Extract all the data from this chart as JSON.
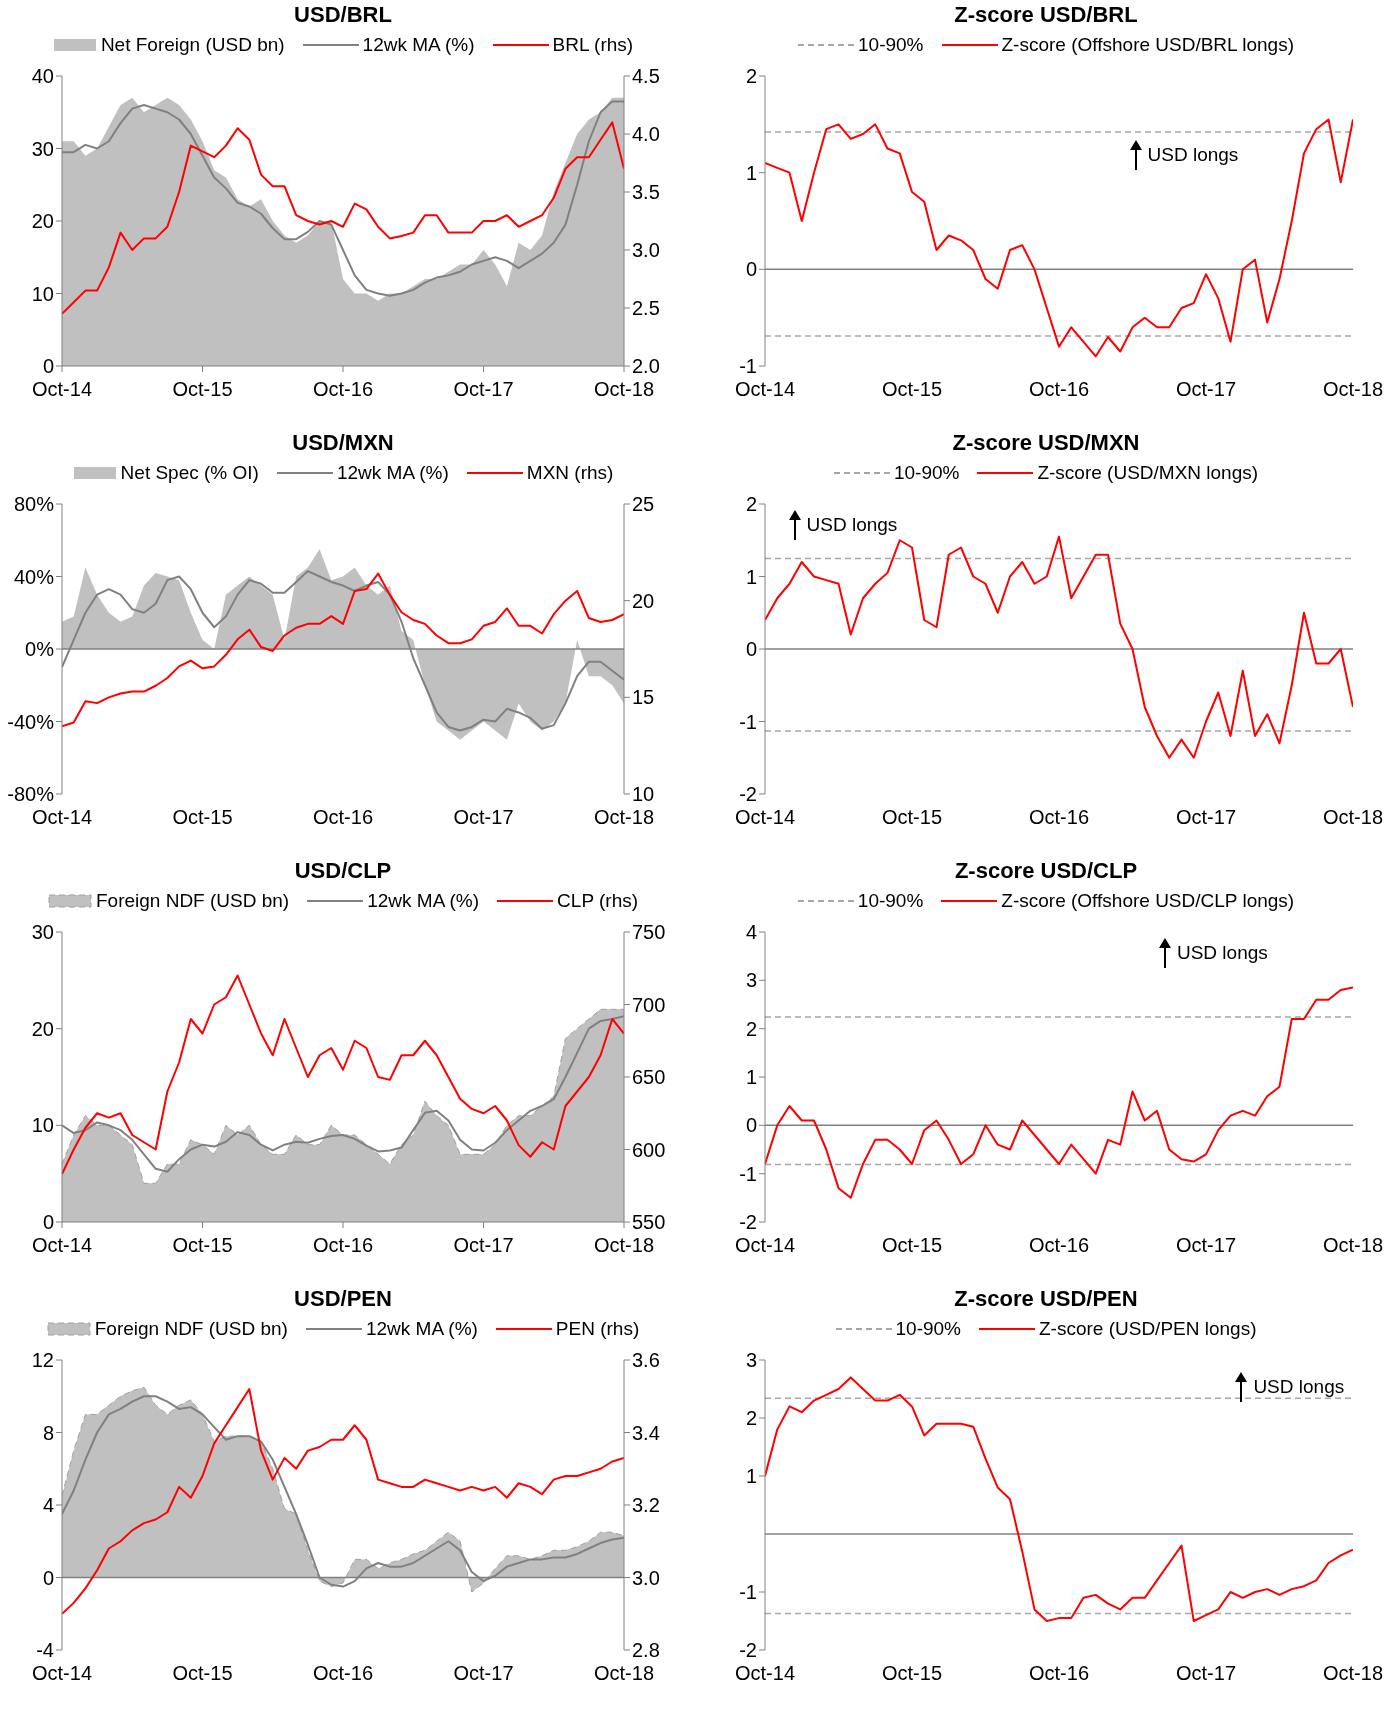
{
  "chart_data": [
    {
      "type": "line",
      "title": "USD/BRL",
      "legend": "top",
      "x": [
        "2014-10",
        "2014-11",
        "2014-12",
        "2015-01",
        "2015-02",
        "2015-03",
        "2015-04",
        "2015-05",
        "2015-06",
        "2015-07",
        "2015-08",
        "2015-09",
        "2015-10",
        "2015-11",
        "2015-12",
        "2016-01",
        "2016-02",
        "2016-03",
        "2016-04",
        "2016-05",
        "2016-06",
        "2016-07",
        "2016-08",
        "2016-09",
        "2016-10",
        "2016-11",
        "2016-12",
        "2017-01",
        "2017-02",
        "2017-03",
        "2017-04",
        "2017-05",
        "2017-06",
        "2017-07",
        "2017-08",
        "2017-09",
        "2017-10",
        "2017-11",
        "2017-12",
        "2018-01",
        "2018-02",
        "2018-03",
        "2018-04",
        "2018-05",
        "2018-06",
        "2018-07",
        "2018-08",
        "2018-09",
        "2018-10"
      ],
      "xlim": [
        "2014-10",
        "2018-10"
      ],
      "xticks": [
        {
          "value": "2014-10",
          "label": "Oct-14"
        },
        {
          "value": "2015-10",
          "label": "Oct-15"
        },
        {
          "value": "2016-10",
          "label": "Oct-16"
        },
        {
          "value": "2017-10",
          "label": "Oct-17"
        },
        {
          "value": "2018-10",
          "label": "Oct-18"
        }
      ],
      "ylim": [
        0,
        40
      ],
      "yticks": [
        0,
        10,
        20,
        30,
        40
      ],
      "y2lim": [
        2,
        4.5
      ],
      "y2ticks": [
        {
          "value": 2,
          "label": "2.0"
        },
        {
          "value": 2.5,
          "label": "2.5"
        },
        {
          "value": 3,
          "label": "3.0"
        },
        {
          "value": 3.5,
          "label": "3.5"
        },
        {
          "value": 4,
          "label": "4.0"
        },
        {
          "value": 4.5,
          "label": "4.5"
        }
      ],
      "series": [
        {
          "type": "area",
          "name": "Net Foreign (USD bn)",
          "color": "#c0c0c0",
          "values": [
            31,
            31,
            29,
            30,
            33,
            36,
            37,
            35,
            36,
            37,
            36,
            34,
            31,
            27,
            26,
            23,
            22,
            23,
            20,
            18,
            17,
            18,
            20,
            20,
            12,
            10,
            10,
            9,
            10,
            10,
            11,
            12,
            12,
            13,
            14,
            14,
            16,
            14,
            11,
            17,
            16,
            18,
            24,
            28,
            32,
            34,
            35,
            37,
            37
          ]
        },
        {
          "type": "line",
          "name": "12wk MA (%)",
          "color": "#808080",
          "values": [
            29.5,
            29.5,
            30.5,
            30,
            31,
            33.5,
            35.5,
            36,
            35.5,
            35,
            34,
            32,
            29,
            26,
            24.5,
            22.5,
            22,
            21,
            19,
            17.5,
            17.5,
            18.5,
            20,
            19.5,
            16,
            12.5,
            10.5,
            10,
            9.7,
            10,
            10.5,
            11.5,
            12.2,
            12.5,
            13,
            14,
            14.5,
            15,
            14.5,
            13.5,
            14.5,
            15.5,
            17,
            19.5,
            25,
            31,
            35,
            36.5,
            36.5
          ]
        },
        {
          "type": "line",
          "name": "BRL (rhs)",
          "color": "#ff0000",
          "axis": "y2",
          "values": [
            2.45,
            2.55,
            2.65,
            2.65,
            2.85,
            3.15,
            3.0,
            3.1,
            3.1,
            3.2,
            3.5,
            3.9,
            3.85,
            3.8,
            3.9,
            4.05,
            3.95,
            3.65,
            3.55,
            3.55,
            3.3,
            3.25,
            3.22,
            3.25,
            3.2,
            3.4,
            3.35,
            3.2,
            3.1,
            3.12,
            3.15,
            3.3,
            3.3,
            3.15,
            3.15,
            3.15,
            3.25,
            3.25,
            3.3,
            3.2,
            3.25,
            3.3,
            3.45,
            3.7,
            3.8,
            3.8,
            3.95,
            4.1,
            3.7
          ]
        }
      ]
    },
    {
      "type": "line",
      "title": "Z-score USD/BRL",
      "legend": "top",
      "annotations": [
        "USD longs"
      ],
      "x": [
        "2014-10",
        "2014-11",
        "2014-12",
        "2015-01",
        "2015-02",
        "2015-03",
        "2015-04",
        "2015-05",
        "2015-06",
        "2015-07",
        "2015-08",
        "2015-09",
        "2015-10",
        "2015-11",
        "2015-12",
        "2016-01",
        "2016-02",
        "2016-03",
        "2016-04",
        "2016-05",
        "2016-06",
        "2016-07",
        "2016-08",
        "2016-09",
        "2016-10",
        "2016-11",
        "2016-12",
        "2017-01",
        "2017-02",
        "2017-03",
        "2017-04",
        "2017-05",
        "2017-06",
        "2017-07",
        "2017-08",
        "2017-09",
        "2017-10",
        "2017-11",
        "2017-12",
        "2018-01",
        "2018-02",
        "2018-03",
        "2018-04",
        "2018-05",
        "2018-06",
        "2018-07",
        "2018-08",
        "2018-09",
        "2018-10"
      ],
      "xlim": [
        "2014-10",
        "2018-10"
      ],
      "xticks": [
        {
          "value": "2014-10",
          "label": "Oct-14"
        },
        {
          "value": "2015-10",
          "label": "Oct-15"
        },
        {
          "value": "2016-10",
          "label": "Oct-16"
        },
        {
          "value": "2017-10",
          "label": "Oct-17"
        },
        {
          "value": "2018-10",
          "label": "Oct-18"
        }
      ],
      "ylim": [
        -1,
        2
      ],
      "yticks": [
        -1,
        0,
        1,
        2
      ],
      "ref_lines": [
        {
          "axis": "y",
          "value": 0,
          "color": "#808080"
        }
      ],
      "series": [
        {
          "name": "10-90%",
          "color": "#a6a6a6",
          "line_style": "dashed",
          "x": [
            "2014-10",
            "2018-10"
          ],
          "values": [
            1.42,
            1.42
          ]
        },
        {
          "color": "#a6a6a6",
          "line_style": "dashed",
          "x": [
            "2014-10",
            "2018-10"
          ],
          "values": [
            -0.69,
            -0.69
          ]
        },
        {
          "name": "Z-score (Offshore USD/BRL longs)",
          "color": "#ff0000",
          "values": [
            1.1,
            1.05,
            1.0,
            0.5,
            1.0,
            1.45,
            1.5,
            1.35,
            1.4,
            1.5,
            1.25,
            1.2,
            0.8,
            0.7,
            0.2,
            0.35,
            0.3,
            0.2,
            -0.1,
            -0.2,
            0.2,
            0.25,
            0.0,
            -0.4,
            -0.8,
            -0.6,
            -0.75,
            -0.9,
            -0.7,
            -0.85,
            -0.6,
            -0.5,
            -0.6,
            -0.6,
            -0.4,
            -0.35,
            -0.05,
            -0.3,
            -0.75,
            0.0,
            0.1,
            -0.55,
            -0.1,
            0.5,
            1.2,
            1.45,
            1.55,
            0.9,
            1.55
          ]
        }
      ]
    },
    {
      "type": "line",
      "title": "USD/MXN",
      "legend": "top",
      "x": [
        "2014-10",
        "2014-11",
        "2014-12",
        "2015-01",
        "2015-02",
        "2015-03",
        "2015-04",
        "2015-05",
        "2015-06",
        "2015-07",
        "2015-08",
        "2015-09",
        "2015-10",
        "2015-11",
        "2015-12",
        "2016-01",
        "2016-02",
        "2016-03",
        "2016-04",
        "2016-05",
        "2016-06",
        "2016-07",
        "2016-08",
        "2016-09",
        "2016-10",
        "2016-11",
        "2016-12",
        "2017-01",
        "2017-02",
        "2017-03",
        "2017-04",
        "2017-05",
        "2017-06",
        "2017-07",
        "2017-08",
        "2017-09",
        "2017-10",
        "2017-11",
        "2017-12",
        "2018-01",
        "2018-02",
        "2018-03",
        "2018-04",
        "2018-05",
        "2018-06",
        "2018-07",
        "2018-08",
        "2018-09",
        "2018-10"
      ],
      "xlim": [
        "2014-10",
        "2018-10"
      ],
      "xticks": [
        {
          "value": "2014-10",
          "label": "Oct-14"
        },
        {
          "value": "2015-10",
          "label": "Oct-15"
        },
        {
          "value": "2016-10",
          "label": "Oct-16"
        },
        {
          "value": "2017-10",
          "label": "Oct-17"
        },
        {
          "value": "2018-10",
          "label": "Oct-18"
        }
      ],
      "ylim": [
        -80,
        80
      ],
      "yticks": [
        {
          "value": -80,
          "label": "-80%"
        },
        {
          "value": -40,
          "label": "-40%"
        },
        {
          "value": 0,
          "label": "0%"
        },
        {
          "value": 40,
          "label": "40%"
        },
        {
          "value": 80,
          "label": "80%"
        }
      ],
      "y2lim": [
        10,
        25
      ],
      "y2ticks": [
        10,
        15,
        20,
        25
      ],
      "ref_lines": [
        {
          "axis": "y",
          "value": 0,
          "color": "#808080"
        }
      ],
      "series": [
        {
          "type": "area",
          "name": "Net Spec (% OI)",
          "color": "#c0c0c0",
          "values": [
            15,
            18,
            45,
            30,
            20,
            15,
            18,
            35,
            42,
            40,
            38,
            20,
            5,
            0,
            30,
            35,
            40,
            35,
            30,
            5,
            40,
            45,
            55,
            38,
            40,
            45,
            35,
            30,
            35,
            10,
            5,
            -20,
            -40,
            -45,
            -50,
            -45,
            -40,
            -45,
            -50,
            -30,
            -40,
            -45,
            -40,
            -30,
            5,
            -15,
            -15,
            -20,
            -30
          ]
        },
        {
          "type": "line",
          "name": "12wk MA (%)",
          "color": "#808080",
          "values": [
            -10,
            5,
            20,
            30,
            33,
            30,
            22,
            20,
            25,
            38,
            40,
            33,
            20,
            12,
            18,
            30,
            38,
            36,
            31,
            31,
            37,
            43,
            40,
            37,
            35,
            32,
            35,
            37,
            30,
            15,
            -5,
            -20,
            -35,
            -43,
            -45,
            -43,
            -39,
            -40,
            -33,
            -35,
            -38,
            -44,
            -42,
            -30,
            -15,
            -7,
            -7,
            -12,
            -17
          ]
        },
        {
          "type": "line",
          "name": "MXN (rhs)",
          "color": "#ff0000",
          "axis": "y2",
          "values": [
            13.5,
            13.7,
            14.8,
            14.7,
            15.0,
            15.2,
            15.3,
            15.3,
            15.6,
            16.0,
            16.6,
            16.9,
            16.5,
            16.6,
            17.2,
            18.0,
            18.5,
            17.6,
            17.4,
            18.2,
            18.6,
            18.8,
            18.8,
            19.2,
            18.8,
            20.5,
            20.6,
            21.4,
            20.3,
            19.4,
            19.0,
            18.8,
            18.2,
            17.8,
            17.8,
            18.0,
            18.7,
            18.9,
            19.6,
            18.7,
            18.7,
            18.3,
            19.3,
            20.0,
            20.5,
            19.1,
            18.9,
            19.0,
            19.3
          ]
        }
      ]
    },
    {
      "type": "line",
      "title": "Z-score USD/MXN",
      "legend": "top",
      "annotations": [
        "USD longs"
      ],
      "x": [
        "2014-10",
        "2014-11",
        "2014-12",
        "2015-01",
        "2015-02",
        "2015-03",
        "2015-04",
        "2015-05",
        "2015-06",
        "2015-07",
        "2015-08",
        "2015-09",
        "2015-10",
        "2015-11",
        "2015-12",
        "2016-01",
        "2016-02",
        "2016-03",
        "2016-04",
        "2016-05",
        "2016-06",
        "2016-07",
        "2016-08",
        "2016-09",
        "2016-10",
        "2016-11",
        "2016-12",
        "2017-01",
        "2017-02",
        "2017-03",
        "2017-04",
        "2017-05",
        "2017-06",
        "2017-07",
        "2017-08",
        "2017-09",
        "2017-10",
        "2017-11",
        "2017-12",
        "2018-01",
        "2018-02",
        "2018-03",
        "2018-04",
        "2018-05",
        "2018-06",
        "2018-07",
        "2018-08",
        "2018-09",
        "2018-10"
      ],
      "xlim": [
        "2014-10",
        "2018-10"
      ],
      "xticks": [
        {
          "value": "2014-10",
          "label": "Oct-14"
        },
        {
          "value": "2015-10",
          "label": "Oct-15"
        },
        {
          "value": "2016-10",
          "label": "Oct-16"
        },
        {
          "value": "2017-10",
          "label": "Oct-17"
        },
        {
          "value": "2018-10",
          "label": "Oct-18"
        }
      ],
      "ylim": [
        -2,
        2
      ],
      "yticks": [
        -2,
        -1,
        0,
        1,
        2
      ],
      "ref_lines": [
        {
          "axis": "y",
          "value": 0,
          "color": "#808080"
        }
      ],
      "series": [
        {
          "name": "10-90%",
          "color": "#a6a6a6",
          "line_style": "dashed",
          "x": [
            "2014-10",
            "2018-10"
          ],
          "values": [
            1.25,
            1.25
          ]
        },
        {
          "color": "#a6a6a6",
          "line_style": "dashed",
          "x": [
            "2014-10",
            "2018-10"
          ],
          "values": [
            -1.13,
            -1.13
          ]
        },
        {
          "name": "Z-score (USD/MXN longs)",
          "color": "#ff0000",
          "values": [
            0.4,
            0.7,
            0.9,
            1.2,
            1.0,
            0.95,
            0.9,
            0.2,
            0.7,
            0.9,
            1.05,
            1.5,
            1.4,
            0.4,
            0.3,
            1.3,
            1.4,
            1.0,
            0.9,
            0.5,
            1.0,
            1.2,
            0.9,
            1.0,
            1.55,
            0.7,
            1.0,
            1.3,
            1.3,
            0.35,
            0.0,
            -0.8,
            -1.2,
            -1.5,
            -1.25,
            -1.5,
            -1.0,
            -0.6,
            -1.2,
            -0.3,
            -1.2,
            -0.9,
            -1.3,
            -0.5,
            0.5,
            -0.2,
            -0.2,
            0.0,
            -0.8
          ]
        }
      ]
    },
    {
      "type": "line",
      "title": "USD/CLP",
      "legend": "top",
      "x": [
        "2014-10",
        "2014-11",
        "2014-12",
        "2015-01",
        "2015-02",
        "2015-03",
        "2015-04",
        "2015-05",
        "2015-06",
        "2015-07",
        "2015-08",
        "2015-09",
        "2015-10",
        "2015-11",
        "2015-12",
        "2016-01",
        "2016-02",
        "2016-03",
        "2016-04",
        "2016-05",
        "2016-06",
        "2016-07",
        "2016-08",
        "2016-09",
        "2016-10",
        "2016-11",
        "2016-12",
        "2017-01",
        "2017-02",
        "2017-03",
        "2017-04",
        "2017-05",
        "2017-06",
        "2017-07",
        "2017-08",
        "2017-09",
        "2017-10",
        "2017-11",
        "2017-12",
        "2018-01",
        "2018-02",
        "2018-03",
        "2018-04",
        "2018-05",
        "2018-06",
        "2018-07",
        "2018-08",
        "2018-09",
        "2018-10"
      ],
      "xlim": [
        "2014-10",
        "2018-10"
      ],
      "xticks": [
        {
          "value": "2014-10",
          "label": "Oct-14"
        },
        {
          "value": "2015-10",
          "label": "Oct-15"
        },
        {
          "value": "2016-10",
          "label": "Oct-16"
        },
        {
          "value": "2017-10",
          "label": "Oct-17"
        },
        {
          "value": "2018-10",
          "label": "Oct-18"
        }
      ],
      "ylim": [
        0,
        30
      ],
      "yticks": [
        0,
        10,
        20,
        30
      ],
      "y2lim": [
        550,
        750
      ],
      "y2ticks": [
        550,
        600,
        650,
        700,
        750
      ],
      "series": [
        {
          "type": "area",
          "name": "Foreign NDF (USD bn)",
          "color": "#c0c0c0",
          "line_style": "dashed",
          "values": [
            6,
            9,
            11,
            10,
            10,
            9,
            8,
            4,
            4,
            6,
            6,
            8.5,
            8,
            7,
            10,
            9,
            10,
            8,
            7,
            7,
            9,
            8,
            8,
            10,
            9,
            9,
            8,
            7,
            6,
            8,
            9,
            12.5,
            11,
            10,
            7,
            7,
            7,
            8,
            10,
            11,
            11,
            12,
            13,
            19,
            20,
            21,
            22,
            22,
            22
          ]
        },
        {
          "type": "line",
          "name": "12wk MA (%)",
          "color": "#808080",
          "values": [
            10,
            9.2,
            9.5,
            10.3,
            10,
            9.5,
            8.5,
            7,
            5.5,
            5.2,
            6.5,
            7.5,
            8,
            7.8,
            8.3,
            9.3,
            9,
            8,
            7.4,
            8,
            8.3,
            8.2,
            8.6,
            8.9,
            9,
            8.6,
            7.9,
            7.3,
            7.4,
            7.7,
            9.5,
            11.3,
            11.5,
            10.5,
            8.5,
            7.5,
            7.4,
            8.2,
            9.5,
            10.5,
            11.5,
            12,
            12.7,
            15,
            17.5,
            20,
            20.8,
            21,
            21.3
          ]
        },
        {
          "type": "line",
          "name": "CLP (rhs)",
          "color": "#ff0000",
          "axis": "y2",
          "values": [
            583,
            600,
            615,
            625,
            622,
            625,
            610,
            605,
            600,
            640,
            660,
            690,
            680,
            700,
            705,
            720,
            700,
            680,
            665,
            690,
            670,
            650,
            665,
            670,
            655,
            675,
            670,
            650,
            648,
            665,
            665,
            675,
            665,
            650,
            635,
            628,
            625,
            630,
            620,
            603,
            595,
            605,
            600,
            630,
            640,
            650,
            665,
            690,
            680
          ]
        }
      ]
    },
    {
      "type": "line",
      "title": "Z-score USD/CLP",
      "legend": "top",
      "annotations": [
        "USD longs"
      ],
      "x": [
        "2014-10",
        "2014-11",
        "2014-12",
        "2015-01",
        "2015-02",
        "2015-03",
        "2015-04",
        "2015-05",
        "2015-06",
        "2015-07",
        "2015-08",
        "2015-09",
        "2015-10",
        "2015-11",
        "2015-12",
        "2016-01",
        "2016-02",
        "2016-03",
        "2016-04",
        "2016-05",
        "2016-06",
        "2016-07",
        "2016-08",
        "2016-09",
        "2016-10",
        "2016-11",
        "2016-12",
        "2017-01",
        "2017-02",
        "2017-03",
        "2017-04",
        "2017-05",
        "2017-06",
        "2017-07",
        "2017-08",
        "2017-09",
        "2017-10",
        "2017-11",
        "2017-12",
        "2018-01",
        "2018-02",
        "2018-03",
        "2018-04",
        "2018-05",
        "2018-06",
        "2018-07",
        "2018-08",
        "2018-09",
        "2018-10"
      ],
      "xlim": [
        "2014-10",
        "2018-10"
      ],
      "xticks": [
        {
          "value": "2014-10",
          "label": "Oct-14"
        },
        {
          "value": "2015-10",
          "label": "Oct-15"
        },
        {
          "value": "2016-10",
          "label": "Oct-16"
        },
        {
          "value": "2017-10",
          "label": "Oct-17"
        },
        {
          "value": "2018-10",
          "label": "Oct-18"
        }
      ],
      "ylim": [
        -2,
        4
      ],
      "yticks": [
        -2,
        -1,
        0,
        1,
        2,
        3,
        4
      ],
      "ref_lines": [
        {
          "axis": "y",
          "value": 0,
          "color": "#808080"
        }
      ],
      "series": [
        {
          "name": "10-90%",
          "color": "#a6a6a6",
          "line_style": "dashed",
          "x": [
            "2014-10",
            "2018-10"
          ],
          "values": [
            2.24,
            2.24
          ]
        },
        {
          "color": "#a6a6a6",
          "line_style": "dashed",
          "x": [
            "2014-10",
            "2018-10"
          ],
          "values": [
            -0.81,
            -0.81
          ]
        },
        {
          "name": "Z-score (Offshore USD/CLP longs)",
          "color": "#ff0000",
          "values": [
            -0.8,
            0.0,
            0.4,
            0.1,
            0.1,
            -0.5,
            -1.3,
            -1.5,
            -0.8,
            -0.3,
            -0.3,
            -0.5,
            -0.8,
            -0.1,
            0.1,
            -0.3,
            -0.8,
            -0.6,
            0.0,
            -0.4,
            -0.5,
            0.1,
            -0.2,
            -0.5,
            -0.8,
            -0.4,
            -0.7,
            -1.0,
            -0.3,
            -0.4,
            0.7,
            0.1,
            0.3,
            -0.5,
            -0.7,
            -0.75,
            -0.6,
            -0.1,
            0.2,
            0.3,
            0.2,
            0.6,
            0.8,
            2.2,
            2.2,
            2.6,
            2.6,
            2.8,
            2.85
          ]
        }
      ]
    },
    {
      "type": "line",
      "title": "USD/PEN",
      "legend": "top",
      "x": [
        "2014-10",
        "2014-11",
        "2014-12",
        "2015-01",
        "2015-02",
        "2015-03",
        "2015-04",
        "2015-05",
        "2015-06",
        "2015-07",
        "2015-08",
        "2015-09",
        "2015-10",
        "2015-11",
        "2015-12",
        "2016-01",
        "2016-02",
        "2016-03",
        "2016-04",
        "2016-05",
        "2016-06",
        "2016-07",
        "2016-08",
        "2016-09",
        "2016-10",
        "2016-11",
        "2016-12",
        "2017-01",
        "2017-02",
        "2017-03",
        "2017-04",
        "2017-05",
        "2017-06",
        "2017-07",
        "2017-08",
        "2017-09",
        "2017-10",
        "2017-11",
        "2017-12",
        "2018-01",
        "2018-02",
        "2018-03",
        "2018-04",
        "2018-05",
        "2018-06",
        "2018-07",
        "2018-08",
        "2018-09",
        "2018-10"
      ],
      "xlim": [
        "2014-10",
        "2018-10"
      ],
      "xticks": [
        {
          "value": "2014-10",
          "label": "Oct-14"
        },
        {
          "value": "2015-10",
          "label": "Oct-15"
        },
        {
          "value": "2016-10",
          "label": "Oct-16"
        },
        {
          "value": "2017-10",
          "label": "Oct-17"
        },
        {
          "value": "2018-10",
          "label": "Oct-18"
        }
      ],
      "ylim": [
        -4,
        12
      ],
      "yticks": [
        -4,
        0,
        4,
        8,
        12
      ],
      "y2lim": [
        2.8,
        3.6
      ],
      "y2ticks": [
        2.8,
        {
          "value": 3,
          "label": "3.0"
        },
        3.2,
        3.4,
        3.6
      ],
      "ref_lines": [
        {
          "axis": "y",
          "value": 0,
          "color": "#808080"
        }
      ],
      "series": [
        {
          "type": "area",
          "name": "Foreign NDF (USD bn)",
          "color": "#c0c0c0",
          "line_style": "dashed",
          "values": [
            4.5,
            7,
            9,
            9,
            9.5,
            10,
            10.3,
            10.5,
            9.5,
            9,
            9.5,
            9.8,
            9,
            7.5,
            7.8,
            7.8,
            7.8,
            7.5,
            6,
            3.8,
            3.5,
            1.5,
            -0.2,
            -0.5,
            -0.3,
            1,
            1,
            0.5,
            0.8,
            1,
            1.3,
            1.5,
            2,
            2.5,
            2,
            -0.8,
            -0.3,
            0.5,
            1.2,
            1.2,
            1,
            1.2,
            1.5,
            1.5,
            1.7,
            2,
            2.5,
            2.5,
            2.3
          ]
        },
        {
          "type": "line",
          "name": "12wk MA (%)",
          "color": "#808080",
          "values": [
            3.5,
            4.8,
            6.5,
            8,
            9,
            9.3,
            9.7,
            10,
            10,
            9.7,
            9.3,
            9.4,
            9,
            8.3,
            7.6,
            7.8,
            7.8,
            7.5,
            6.5,
            5,
            3.5,
            1.8,
            0,
            -0.4,
            -0.5,
            -0.2,
            0.5,
            0.8,
            0.6,
            0.6,
            0.8,
            1.2,
            1.6,
            2,
            1.5,
            0.3,
            -0.2,
            0.1,
            0.6,
            0.8,
            1,
            1,
            1.1,
            1.1,
            1.3,
            1.6,
            1.9,
            2.1,
            2.2
          ]
        },
        {
          "type": "line",
          "name": "PEN (rhs)",
          "color": "#ff0000",
          "axis": "y2",
          "values": [
            2.9,
            2.93,
            2.97,
            3.02,
            3.08,
            3.1,
            3.13,
            3.15,
            3.16,
            3.18,
            3.25,
            3.22,
            3.28,
            3.37,
            3.42,
            3.47,
            3.52,
            3.35,
            3.27,
            3.33,
            3.3,
            3.35,
            3.36,
            3.38,
            3.38,
            3.42,
            3.38,
            3.27,
            3.26,
            3.25,
            3.25,
            3.27,
            3.26,
            3.25,
            3.24,
            3.25,
            3.24,
            3.25,
            3.22,
            3.26,
            3.25,
            3.23,
            3.27,
            3.28,
            3.28,
            3.29,
            3.3,
            3.32,
            3.33
          ]
        }
      ]
    },
    {
      "type": "line",
      "title": "Z-score USD/PEN",
      "legend": "top",
      "annotations": [
        "USD longs"
      ],
      "x": [
        "2014-10",
        "2014-11",
        "2014-12",
        "2015-01",
        "2015-02",
        "2015-03",
        "2015-04",
        "2015-05",
        "2015-06",
        "2015-07",
        "2015-08",
        "2015-09",
        "2015-10",
        "2015-11",
        "2015-12",
        "2016-01",
        "2016-02",
        "2016-03",
        "2016-04",
        "2016-05",
        "2016-06",
        "2016-07",
        "2016-08",
        "2016-09",
        "2016-10",
        "2016-11",
        "2016-12",
        "2017-01",
        "2017-02",
        "2017-03",
        "2017-04",
        "2017-05",
        "2017-06",
        "2017-07",
        "2017-08",
        "2017-09",
        "2017-10",
        "2017-11",
        "2017-12",
        "2018-01",
        "2018-02",
        "2018-03",
        "2018-04",
        "2018-05",
        "2018-06",
        "2018-07",
        "2018-08",
        "2018-09",
        "2018-10"
      ],
      "xlim": [
        "2014-10",
        "2018-10"
      ],
      "xticks": [
        {
          "value": "2014-10",
          "label": "Oct-14"
        },
        {
          "value": "2015-10",
          "label": "Oct-15"
        },
        {
          "value": "2016-10",
          "label": "Oct-16"
        },
        {
          "value": "2017-10",
          "label": "Oct-17"
        },
        {
          "value": "2018-10",
          "label": "Oct-18"
        }
      ],
      "ylim": [
        -2,
        3
      ],
      "yticks": [
        -2,
        -1,
        1,
        2,
        3
      ],
      "ref_lines": [
        {
          "axis": "y",
          "value": 0,
          "color": "#808080"
        }
      ],
      "series": [
        {
          "name": "10-90%",
          "color": "#a6a6a6",
          "line_style": "dashed",
          "x": [
            "2014-10",
            "2018-10"
          ],
          "values": [
            2.34,
            2.34
          ]
        },
        {
          "color": "#a6a6a6",
          "line_style": "dashed",
          "x": [
            "2014-10",
            "2018-10"
          ],
          "values": [
            -1.37,
            -1.37
          ]
        },
        {
          "name": "Z-score (USD/PEN longs)",
          "color": "#ff0000",
          "values": [
            1.0,
            1.8,
            2.2,
            2.1,
            2.3,
            2.4,
            2.5,
            2.7,
            2.5,
            2.3,
            2.3,
            2.4,
            2.2,
            1.7,
            1.9,
            1.9,
            1.9,
            1.85,
            1.3,
            0.8,
            0.6,
            -0.3,
            -1.3,
            -1.5,
            -1.45,
            -1.45,
            -1.1,
            -1.05,
            -1.2,
            -1.3,
            -1.1,
            -1.1,
            -0.8,
            -0.5,
            -0.2,
            -1.5,
            -1.4,
            -1.3,
            -1.0,
            -1.1,
            -1.0,
            -0.95,
            -1.05,
            -0.95,
            -0.9,
            -0.8,
            -0.5,
            -0.37,
            -0.27
          ]
        }
      ]
    }
  ]
}
